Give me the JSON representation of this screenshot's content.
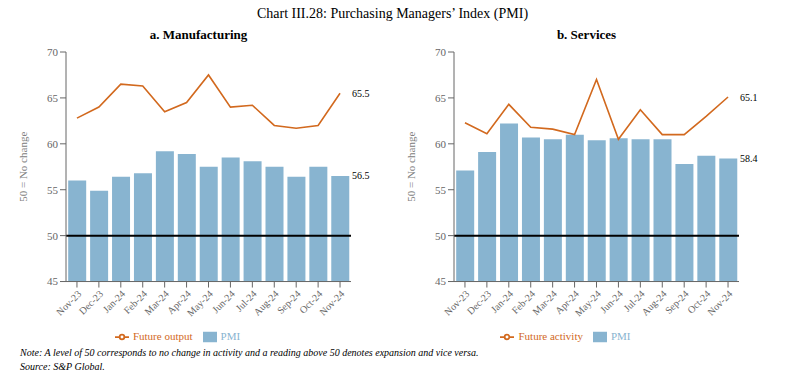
{
  "title": "Chart III.28: Purchasing Managers’ Index (PMI)",
  "annotations": [
    "Note: A level of 50 corresponds to no change in activity and a reading above 50 denotes expansion and vice versa.",
    "Source: S&P Global."
  ],
  "chart_data": [
    {
      "type": "bar",
      "title": "a. Manufacturing",
      "categories": [
        "Nov-23",
        "Dec-23",
        "Jan-24",
        "Feb-24",
        "Mar-24",
        "Apr-24",
        "May-24",
        "Jun-24",
        "Jul-24",
        "Aug-24",
        "Sep-24",
        "Oct-24",
        "Nov-24"
      ],
      "series": [
        {
          "name": "PMI",
          "type": "bar",
          "color": "#88B4D0",
          "values": [
            56.0,
            54.9,
            56.4,
            56.8,
            59.2,
            58.9,
            57.5,
            58.5,
            58.1,
            57.5,
            56.4,
            57.5,
            56.5
          ]
        },
        {
          "name": "Future output",
          "type": "line",
          "color": "#D2691E",
          "values": [
            62.8,
            64.0,
            66.5,
            66.3,
            63.5,
            64.5,
            67.5,
            64.0,
            64.2,
            62.0,
            61.7,
            62.0,
            65.5
          ]
        }
      ],
      "ylabel": "50 = No change",
      "ylim": [
        45,
        70
      ],
      "yticks": [
        45,
        50,
        55,
        60,
        65,
        70
      ],
      "reference_line": {
        "y": 50,
        "color": "black"
      },
      "annotations": [
        {
          "x": "Nov-24",
          "y": 56.5,
          "text": "56.5"
        },
        {
          "x": "Nov-24",
          "y": 65.5,
          "text": "65.5"
        }
      ],
      "grid": false,
      "legend": "bottom"
    },
    {
      "type": "bar",
      "title": "b. Services",
      "categories": [
        "Nov-23",
        "Dec-23",
        "Jan-24",
        "Feb-24",
        "Mar-24",
        "Apr-24",
        "May-24",
        "Jun-24",
        "Jul-24",
        "Aug-24",
        "Sep-24",
        "Oct-24",
        "Nov-24"
      ],
      "series": [
        {
          "name": "PMI",
          "type": "bar",
          "color": "#88B4D0",
          "values": [
            57.1,
            59.1,
            62.2,
            60.7,
            60.5,
            61.0,
            60.4,
            60.6,
            60.5,
            60.5,
            57.8,
            58.7,
            58.4
          ]
        },
        {
          "name": "Future activity",
          "type": "line",
          "color": "#D2691E",
          "values": [
            62.3,
            61.1,
            64.3,
            61.8,
            61.6,
            61.0,
            67.0,
            60.5,
            63.7,
            61.0,
            61.0,
            63.0,
            65.1
          ]
        }
      ],
      "ylabel": "50 = No change",
      "ylim": [
        45,
        70
      ],
      "yticks": [
        45,
        50,
        55,
        60,
        65,
        70
      ],
      "reference_line": {
        "y": 50,
        "color": "black"
      },
      "annotations": [
        {
          "x": "Nov-24",
          "y": 58.4,
          "text": "58.4"
        },
        {
          "x": "Nov-24",
          "y": 65.1,
          "text": "65.1"
        }
      ],
      "grid": false,
      "legend": "bottom"
    }
  ]
}
